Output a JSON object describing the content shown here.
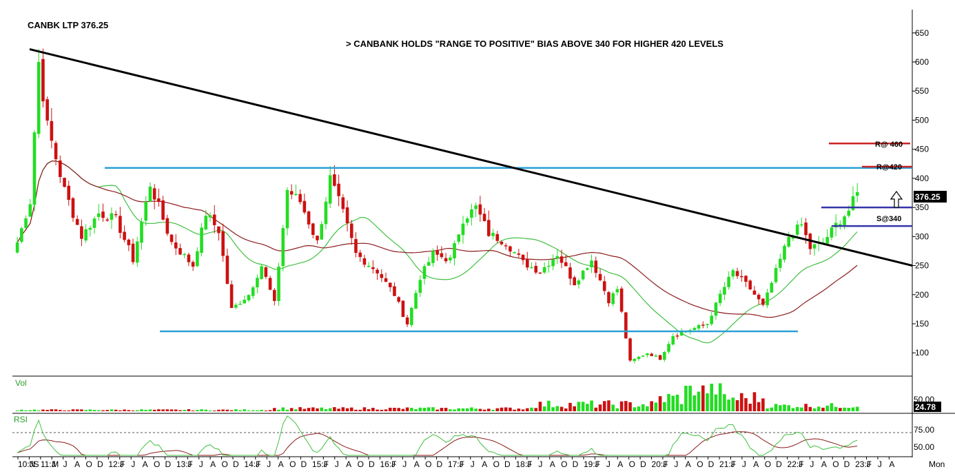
{
  "header": {
    "ticker": "CANBK LTP 376.25",
    "headline": "> CANBANK HOLDS \"RANGE TO POSITIVE\" BIAS ABOVE 340 FOR HIGHER 420 LEVELS"
  },
  "panels": {
    "vol_label": "Vol",
    "rsi_label": "RSI",
    "vol_readout": "24.78",
    "price_readout": "376.25"
  },
  "annotations": {
    "r460": "R@ 460",
    "r420": "R@420",
    "s340": "S@340"
  },
  "colors": {
    "up": "#22dd22",
    "down": "#cc1111",
    "sma_short": "#3fbf3f",
    "sma_long": "#8b1a1a",
    "range_line": "#2a9fd6",
    "trendline": "#000000",
    "resistance": "#cc2222",
    "support": "#3333aa",
    "badge_bg": "#000000",
    "rsi_fast": "#3fbf3f",
    "rsi_slow": "#8b1a1a"
  },
  "icons": {
    "target_arrow": "up-arrow-icon"
  },
  "chart_data": {
    "type": "candlestick",
    "title": "CANBK LTP 376.25",
    "subtitle": "> CANBANK HOLDS \"RANGE TO POSITIVE\" BIAS ABOVE 340 FOR HIGHER 420 LEVELS",
    "last_price": 376.25,
    "y_axis": {
      "min": 60,
      "max": 690,
      "ticks": [
        100,
        150,
        200,
        250,
        300,
        350,
        400,
        450,
        500,
        550,
        600,
        650
      ]
    },
    "x_ticks": [
      "10:JS",
      "N",
      "11:J",
      "M",
      "J",
      "A",
      "O",
      "D",
      "12:F",
      "J",
      "J",
      "A",
      "O",
      "D",
      "13:F",
      "J",
      "J",
      "A",
      "O",
      "D",
      "14:F",
      "J",
      "J",
      "A",
      "O",
      "D",
      "15:F",
      "J",
      "J",
      "A",
      "O",
      "D",
      "16:F",
      "J",
      "J",
      "A",
      "O",
      "D",
      "17:F",
      "J",
      "J",
      "A",
      "O",
      "D",
      "18:F",
      "J",
      "J",
      "A",
      "O",
      "D",
      "19:F",
      "J",
      "J",
      "A",
      "O",
      "D",
      "20:F",
      "J",
      "J",
      "A",
      "O",
      "D",
      "21:F",
      "J",
      "J",
      "A",
      "O",
      "D",
      "22:F",
      "J",
      "J",
      "A",
      "O",
      "D",
      "23:F",
      "J",
      "J",
      "A",
      "Mon"
    ],
    "levels": {
      "range_top": 418,
      "range_bottom": 137,
      "resistance": [
        460,
        420
      ],
      "support": [
        350,
        340
      ]
    },
    "trendline": [
      {
        "period": "10:JS",
        "price": 622
      },
      {
        "period": "23:A",
        "price": 250
      }
    ],
    "price_waypoints": [
      [
        0,
        290
      ],
      [
        3,
        360
      ],
      [
        5,
        600
      ],
      [
        7,
        490
      ],
      [
        11,
        380
      ],
      [
        15,
        300
      ],
      [
        19,
        340
      ],
      [
        23,
        330
      ],
      [
        27,
        260
      ],
      [
        31,
        390
      ],
      [
        36,
        290
      ],
      [
        41,
        250
      ],
      [
        44,
        340
      ],
      [
        47,
        310
      ],
      [
        50,
        175
      ],
      [
        54,
        200
      ],
      [
        57,
        250
      ],
      [
        60,
        185
      ],
      [
        63,
        380
      ],
      [
        66,
        360
      ],
      [
        70,
        290
      ],
      [
        73,
        400
      ],
      [
        76,
        340
      ],
      [
        79,
        270
      ],
      [
        84,
        240
      ],
      [
        88,
        200
      ],
      [
        91,
        150
      ],
      [
        94,
        230
      ],
      [
        97,
        270
      ],
      [
        101,
        260
      ],
      [
        104,
        330
      ],
      [
        107,
        350
      ],
      [
        110,
        305
      ],
      [
        114,
        290
      ],
      [
        118,
        255
      ],
      [
        122,
        240
      ],
      [
        126,
        270
      ],
      [
        130,
        220
      ],
      [
        134,
        260
      ],
      [
        138,
        190
      ],
      [
        140,
        210
      ],
      [
        143,
        85
      ],
      [
        147,
        100
      ],
      [
        150,
        90
      ],
      [
        153,
        130
      ],
      [
        157,
        140
      ],
      [
        161,
        150
      ],
      [
        164,
        200
      ],
      [
        167,
        240
      ],
      [
        171,
        210
      ],
      [
        174,
        180
      ],
      [
        177,
        240
      ],
      [
        180,
        300
      ],
      [
        183,
        320
      ],
      [
        185,
        280
      ],
      [
        188,
        290
      ],
      [
        191,
        320
      ],
      [
        194,
        345
      ],
      [
        196,
        376.25
      ]
    ],
    "volume": {
      "label": "Vol",
      "ticks": [
        50
      ],
      "last": 24.78
    },
    "rsi": {
      "label": "RSI",
      "ticks": [
        50,
        75
      ],
      "overbought": 70
    }
  }
}
